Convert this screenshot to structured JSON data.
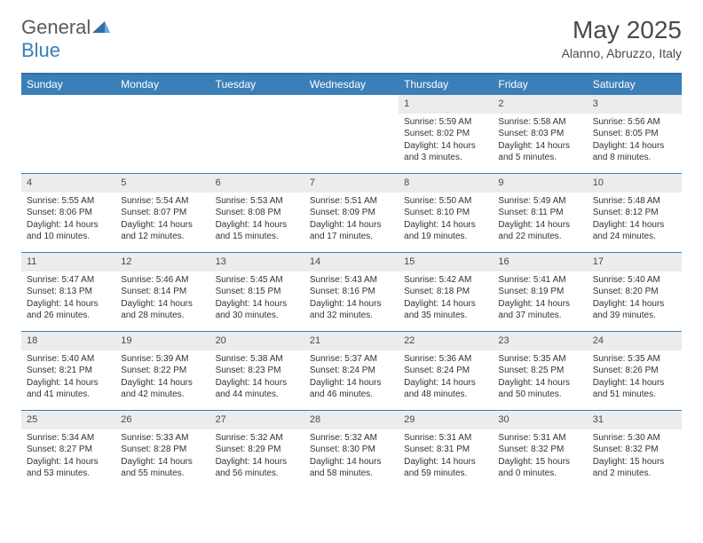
{
  "brand": {
    "part1": "General",
    "part2": "Blue"
  },
  "title": "May 2025",
  "location": "Alanno, Abruzzo, Italy",
  "colors": {
    "header_bg": "#3b7fb8",
    "border": "#3b7fb8",
    "daynum_bg": "#ececec",
    "text": "#333333"
  },
  "weekdays": [
    "Sunday",
    "Monday",
    "Tuesday",
    "Wednesday",
    "Thursday",
    "Friday",
    "Saturday"
  ],
  "weeks": [
    [
      null,
      null,
      null,
      null,
      {
        "n": "1",
        "sr": "Sunrise: 5:59 AM",
        "ss": "Sunset: 8:02 PM",
        "dl": "Daylight: 14 hours and 3 minutes."
      },
      {
        "n": "2",
        "sr": "Sunrise: 5:58 AM",
        "ss": "Sunset: 8:03 PM",
        "dl": "Daylight: 14 hours and 5 minutes."
      },
      {
        "n": "3",
        "sr": "Sunrise: 5:56 AM",
        "ss": "Sunset: 8:05 PM",
        "dl": "Daylight: 14 hours and 8 minutes."
      }
    ],
    [
      {
        "n": "4",
        "sr": "Sunrise: 5:55 AM",
        "ss": "Sunset: 8:06 PM",
        "dl": "Daylight: 14 hours and 10 minutes."
      },
      {
        "n": "5",
        "sr": "Sunrise: 5:54 AM",
        "ss": "Sunset: 8:07 PM",
        "dl": "Daylight: 14 hours and 12 minutes."
      },
      {
        "n": "6",
        "sr": "Sunrise: 5:53 AM",
        "ss": "Sunset: 8:08 PM",
        "dl": "Daylight: 14 hours and 15 minutes."
      },
      {
        "n": "7",
        "sr": "Sunrise: 5:51 AM",
        "ss": "Sunset: 8:09 PM",
        "dl": "Daylight: 14 hours and 17 minutes."
      },
      {
        "n": "8",
        "sr": "Sunrise: 5:50 AM",
        "ss": "Sunset: 8:10 PM",
        "dl": "Daylight: 14 hours and 19 minutes."
      },
      {
        "n": "9",
        "sr": "Sunrise: 5:49 AM",
        "ss": "Sunset: 8:11 PM",
        "dl": "Daylight: 14 hours and 22 minutes."
      },
      {
        "n": "10",
        "sr": "Sunrise: 5:48 AM",
        "ss": "Sunset: 8:12 PM",
        "dl": "Daylight: 14 hours and 24 minutes."
      }
    ],
    [
      {
        "n": "11",
        "sr": "Sunrise: 5:47 AM",
        "ss": "Sunset: 8:13 PM",
        "dl": "Daylight: 14 hours and 26 minutes."
      },
      {
        "n": "12",
        "sr": "Sunrise: 5:46 AM",
        "ss": "Sunset: 8:14 PM",
        "dl": "Daylight: 14 hours and 28 minutes."
      },
      {
        "n": "13",
        "sr": "Sunrise: 5:45 AM",
        "ss": "Sunset: 8:15 PM",
        "dl": "Daylight: 14 hours and 30 minutes."
      },
      {
        "n": "14",
        "sr": "Sunrise: 5:43 AM",
        "ss": "Sunset: 8:16 PM",
        "dl": "Daylight: 14 hours and 32 minutes."
      },
      {
        "n": "15",
        "sr": "Sunrise: 5:42 AM",
        "ss": "Sunset: 8:18 PM",
        "dl": "Daylight: 14 hours and 35 minutes."
      },
      {
        "n": "16",
        "sr": "Sunrise: 5:41 AM",
        "ss": "Sunset: 8:19 PM",
        "dl": "Daylight: 14 hours and 37 minutes."
      },
      {
        "n": "17",
        "sr": "Sunrise: 5:40 AM",
        "ss": "Sunset: 8:20 PM",
        "dl": "Daylight: 14 hours and 39 minutes."
      }
    ],
    [
      {
        "n": "18",
        "sr": "Sunrise: 5:40 AM",
        "ss": "Sunset: 8:21 PM",
        "dl": "Daylight: 14 hours and 41 minutes."
      },
      {
        "n": "19",
        "sr": "Sunrise: 5:39 AM",
        "ss": "Sunset: 8:22 PM",
        "dl": "Daylight: 14 hours and 42 minutes."
      },
      {
        "n": "20",
        "sr": "Sunrise: 5:38 AM",
        "ss": "Sunset: 8:23 PM",
        "dl": "Daylight: 14 hours and 44 minutes."
      },
      {
        "n": "21",
        "sr": "Sunrise: 5:37 AM",
        "ss": "Sunset: 8:24 PM",
        "dl": "Daylight: 14 hours and 46 minutes."
      },
      {
        "n": "22",
        "sr": "Sunrise: 5:36 AM",
        "ss": "Sunset: 8:24 PM",
        "dl": "Daylight: 14 hours and 48 minutes."
      },
      {
        "n": "23",
        "sr": "Sunrise: 5:35 AM",
        "ss": "Sunset: 8:25 PM",
        "dl": "Daylight: 14 hours and 50 minutes."
      },
      {
        "n": "24",
        "sr": "Sunrise: 5:35 AM",
        "ss": "Sunset: 8:26 PM",
        "dl": "Daylight: 14 hours and 51 minutes."
      }
    ],
    [
      {
        "n": "25",
        "sr": "Sunrise: 5:34 AM",
        "ss": "Sunset: 8:27 PM",
        "dl": "Daylight: 14 hours and 53 minutes."
      },
      {
        "n": "26",
        "sr": "Sunrise: 5:33 AM",
        "ss": "Sunset: 8:28 PM",
        "dl": "Daylight: 14 hours and 55 minutes."
      },
      {
        "n": "27",
        "sr": "Sunrise: 5:32 AM",
        "ss": "Sunset: 8:29 PM",
        "dl": "Daylight: 14 hours and 56 minutes."
      },
      {
        "n": "28",
        "sr": "Sunrise: 5:32 AM",
        "ss": "Sunset: 8:30 PM",
        "dl": "Daylight: 14 hours and 58 minutes."
      },
      {
        "n": "29",
        "sr": "Sunrise: 5:31 AM",
        "ss": "Sunset: 8:31 PM",
        "dl": "Daylight: 14 hours and 59 minutes."
      },
      {
        "n": "30",
        "sr": "Sunrise: 5:31 AM",
        "ss": "Sunset: 8:32 PM",
        "dl": "Daylight: 15 hours and 0 minutes."
      },
      {
        "n": "31",
        "sr": "Sunrise: 5:30 AM",
        "ss": "Sunset: 8:32 PM",
        "dl": "Daylight: 15 hours and 2 minutes."
      }
    ]
  ]
}
